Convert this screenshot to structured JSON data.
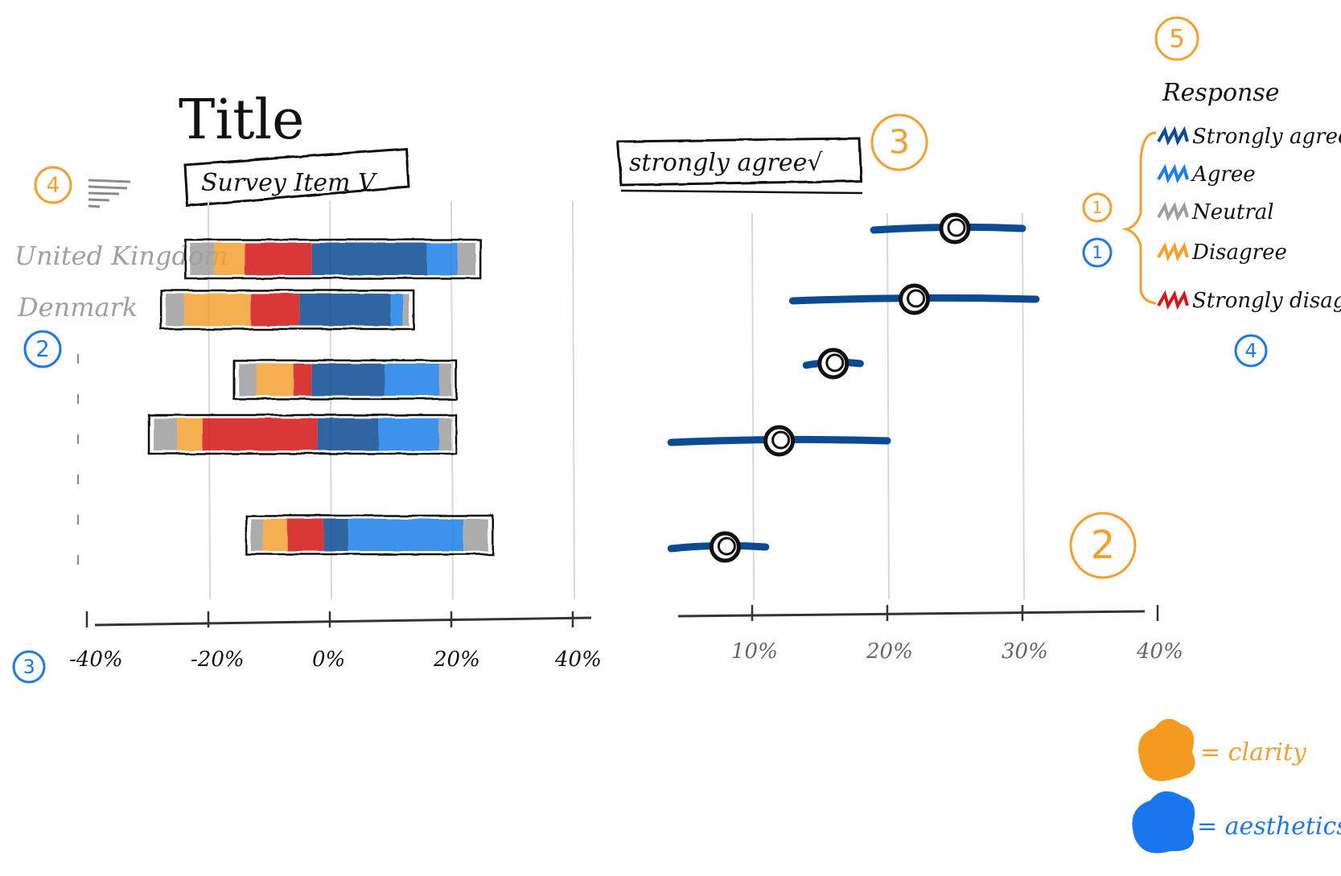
{
  "title": "Title",
  "dropdowns": {
    "survey_item": "Survey Item V",
    "response": "strongly agree√"
  },
  "colors": {
    "strongly_agree": "#0d4a94",
    "agree": "#1f7fe8",
    "neutral": "#9e9e9e",
    "disagree": "#f4a030",
    "strongly_disagree": "#d41818",
    "annotation_orange": "#f0a030",
    "annotation_blue": "#1f77e0",
    "dot_line": "#0d4a94"
  },
  "annotations": {
    "orange": [
      "4",
      "3",
      "5",
      "1",
      "2"
    ],
    "blue": [
      "2",
      "3",
      "1",
      "4"
    ]
  },
  "legend": {
    "title": "Response",
    "items": [
      "Strongly agree",
      "Agree",
      "Neutral",
      "Disagree",
      "Strongly disagree"
    ]
  },
  "key": {
    "clarity": "= clarity",
    "aesthetics": "= aesthetics"
  },
  "chart_data": [
    {
      "type": "bar",
      "stacking": "diverging",
      "categories": [
        "United Kingdom",
        "Denmark",
        "",
        "",
        ""
      ],
      "series_order": [
        "Neutral",
        "Disagree",
        "Strongly disagree",
        "Strongly agree",
        "Agree",
        "Neutral"
      ],
      "rows": [
        {
          "segments": [
            [
              "neutral",
              -23,
              -19
            ],
            [
              "disagree",
              -19,
              -14
            ],
            [
              "strongly_disagree",
              -14,
              -3
            ],
            [
              "strongly_agree",
              -3,
              16
            ],
            [
              "agree",
              16,
              21
            ],
            [
              "neutral",
              21,
              24
            ]
          ]
        },
        {
          "segments": [
            [
              "neutral",
              -27,
              -24
            ],
            [
              "disagree",
              -24,
              -13
            ],
            [
              "strongly_disagree",
              -13,
              -5
            ],
            [
              "strongly_agree",
              -5,
              10
            ],
            [
              "agree",
              10,
              12
            ],
            [
              "neutral",
              12,
              13
            ]
          ]
        },
        {
          "segments": [
            [
              "neutral",
              -15,
              -12
            ],
            [
              "disagree",
              -12,
              -6
            ],
            [
              "strongly_disagree",
              -6,
              -3
            ],
            [
              "strongly_agree",
              -3,
              9
            ],
            [
              "agree",
              9,
              18
            ],
            [
              "neutral",
              18,
              20
            ]
          ]
        },
        {
          "segments": [
            [
              "neutral",
              -29,
              -25
            ],
            [
              "disagree",
              -25,
              -21
            ],
            [
              "strongly_disagree",
              -21,
              -2
            ],
            [
              "strongly_agree",
              -2,
              8
            ],
            [
              "agree",
              8,
              18
            ],
            [
              "neutral",
              18,
              20
            ]
          ]
        },
        {
          "segments": [
            [
              "neutral",
              -13,
              -11
            ],
            [
              "disagree",
              -11,
              -7
            ],
            [
              "strongly_disagree",
              -7,
              -1
            ],
            [
              "strongly_agree",
              -1,
              3
            ],
            [
              "agree",
              3,
              22
            ],
            [
              "neutral",
              22,
              26
            ]
          ]
        }
      ],
      "x_ticks": [
        "-40%",
        "-20%",
        "0%",
        "20%",
        "40%"
      ],
      "xlim": [
        -40,
        40
      ]
    },
    {
      "type": "scatter",
      "subtype": "dot-with-range",
      "x_ticks": [
        "10%",
        "20%",
        "30%",
        "40%"
      ],
      "xlim": [
        4,
        40
      ],
      "points": [
        {
          "value": 25,
          "low": 19,
          "high": 30
        },
        {
          "value": 22,
          "low": 13,
          "high": 31
        },
        {
          "value": 16,
          "low": 14,
          "high": 18
        },
        {
          "value": 12,
          "low": 4,
          "high": 20
        },
        {
          "value": 8,
          "low": 4,
          "high": 11
        }
      ]
    }
  ]
}
